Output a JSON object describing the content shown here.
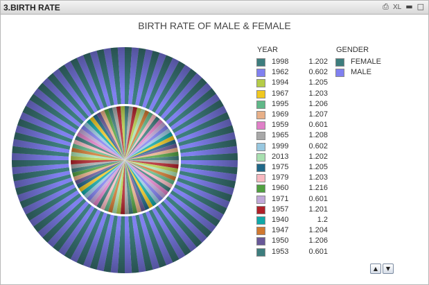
{
  "window": {
    "title": "3.BIRTH RATE"
  },
  "toolbar": {
    "print_icon": "printer-icon",
    "xl_label": "XL",
    "minimize_icon": "minimize-icon",
    "maximize_icon": "maximize-icon"
  },
  "chart_data": {
    "type": "pie",
    "title": "BIRTH RATE OF MALE & FEMALE",
    "legend_placement": "right",
    "year_legend": {
      "header": "YEAR",
      "entries": [
        {
          "year": "1998",
          "value": "1.202",
          "color": "#3d7d7d"
        },
        {
          "year": "1962",
          "value": "0.602",
          "color": "#8080f0"
        },
        {
          "year": "1994",
          "value": "1.205",
          "color": "#b5cc48"
        },
        {
          "year": "1967",
          "value": "1.203",
          "color": "#f0c820"
        },
        {
          "year": "1995",
          "value": "1.206",
          "color": "#60b888"
        },
        {
          "year": "1969",
          "value": "1.207",
          "color": "#e8b088"
        },
        {
          "year": "1959",
          "value": "0.601",
          "color": "#e080c8"
        },
        {
          "year": "1965",
          "value": "1.208",
          "color": "#a8a8a8"
        },
        {
          "year": "1999",
          "value": "0.602",
          "color": "#98c8e0"
        },
        {
          "year": "2013",
          "value": "1.202",
          "color": "#a8e0b0"
        },
        {
          "year": "1975",
          "value": "1.205",
          "color": "#206888"
        },
        {
          "year": "1979",
          "value": "1.203",
          "color": "#f8b8c0"
        },
        {
          "year": "1960",
          "value": "1.216",
          "color": "#50a040"
        },
        {
          "year": "1971",
          "value": "0.601",
          "color": "#c0a8d8"
        },
        {
          "year": "1957",
          "value": "1.201",
          "color": "#b02028"
        },
        {
          "year": "1940",
          "value": "1.2",
          "color": "#10a8a8"
        },
        {
          "year": "1947",
          "value": "1.204",
          "color": "#d07830"
        },
        {
          "year": "1950",
          "value": "1.206",
          "color": "#685898"
        },
        {
          "year": "1953",
          "value": "0.601",
          "color": "#3d7d7d"
        }
      ]
    },
    "gender_legend": {
      "header": "GENDER",
      "entries": [
        {
          "label": "FEMALE",
          "color": "#3d7d7d"
        },
        {
          "label": "MALE",
          "color": "#8080f0"
        }
      ]
    },
    "outer_ring": {
      "series": "GENDER",
      "alternating": [
        "FEMALE",
        "MALE"
      ],
      "slice_count": 100
    },
    "inner_pie": {
      "series": "YEAR",
      "slice_count": 80
    }
  },
  "scroll": {
    "up_icon": "chevron-up-icon",
    "down_icon": "chevron-down-icon"
  }
}
